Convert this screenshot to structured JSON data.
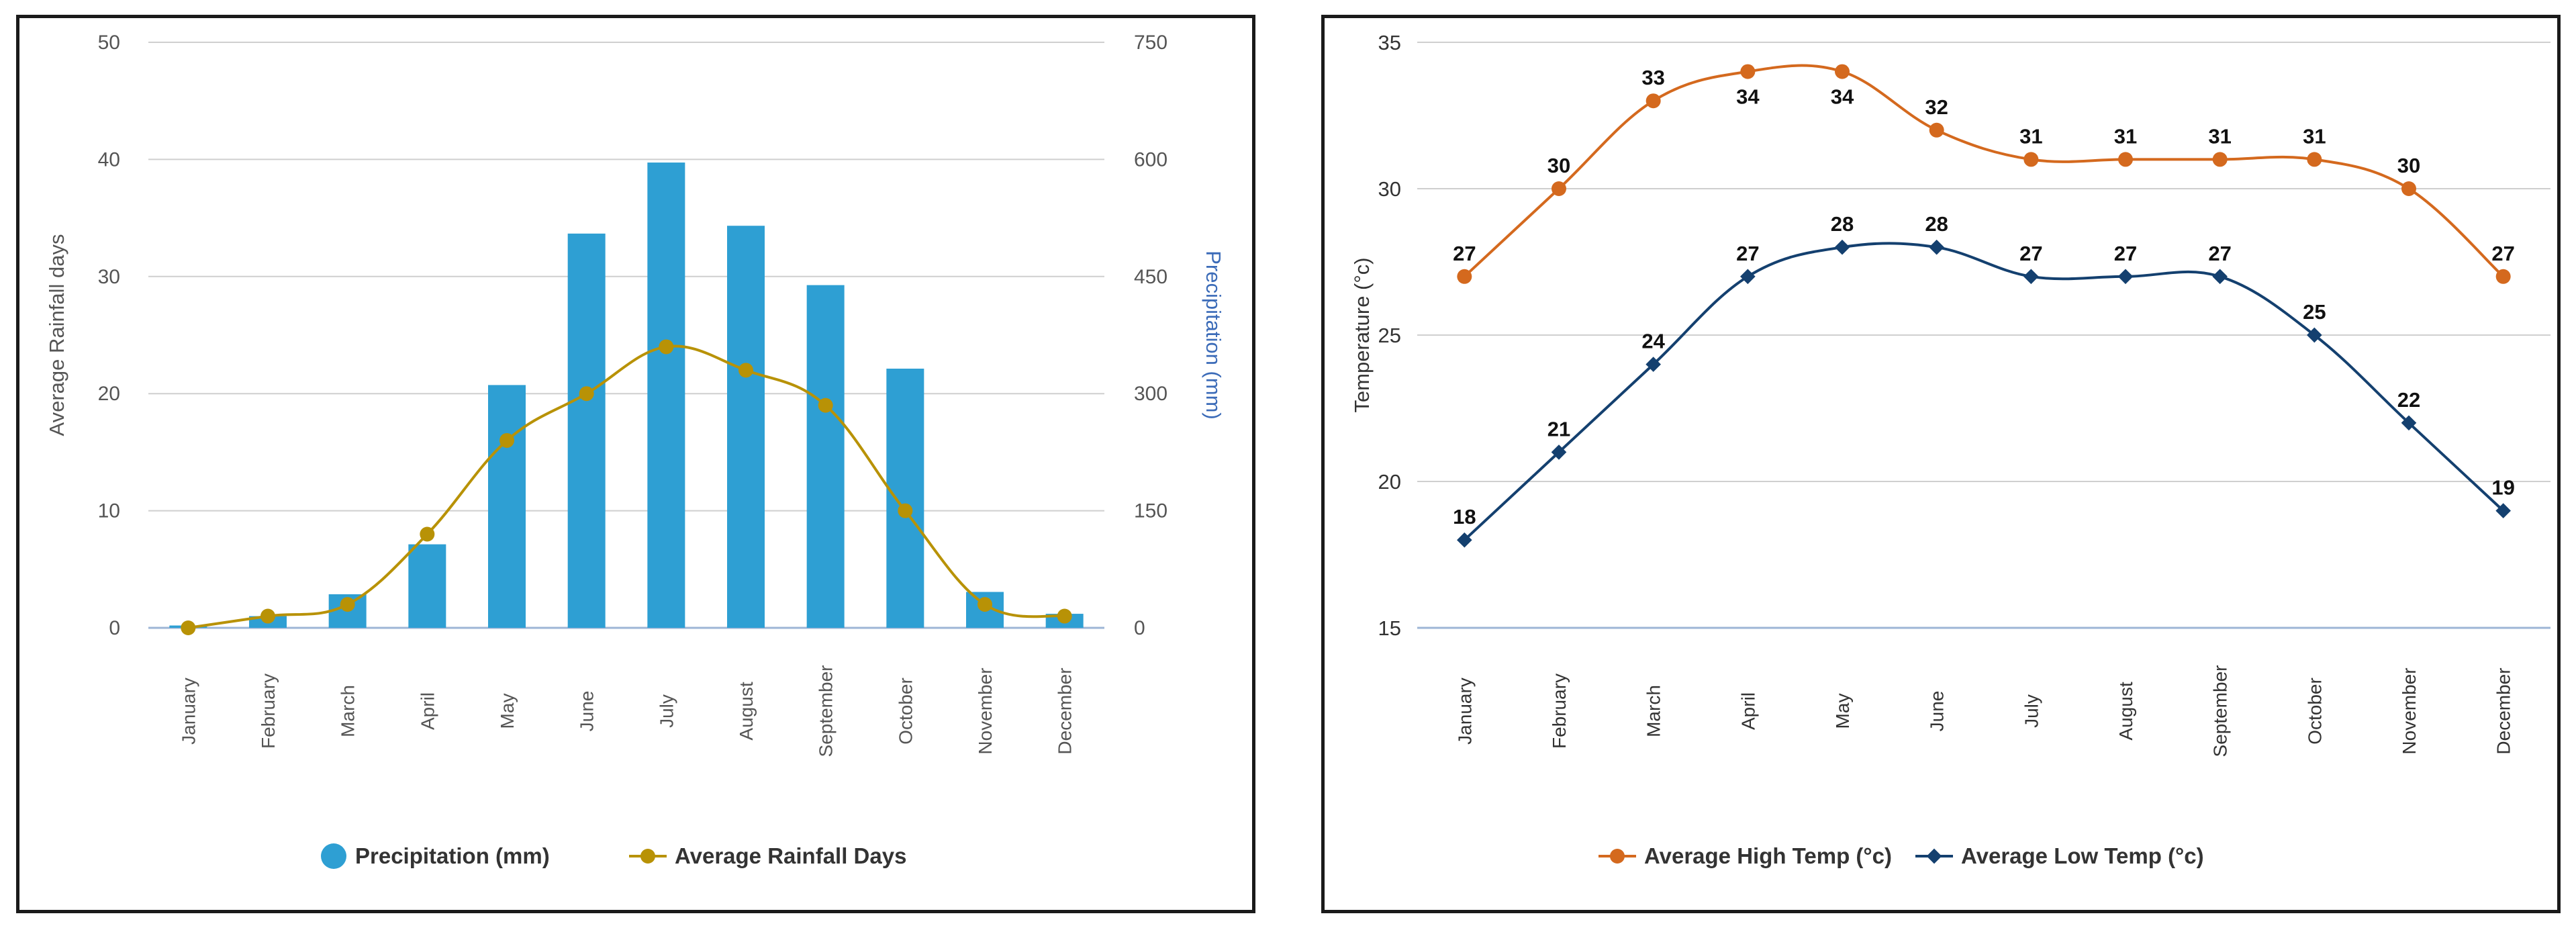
{
  "chart_data": [
    {
      "type": "bar",
      "categories": [
        "January",
        "February",
        "March",
        "April",
        "May",
        "June",
        "July",
        "August",
        "September",
        "October",
        "November",
        "December"
      ],
      "series": [
        {
          "name": "Precipitation (mm)",
          "type": "bar",
          "axis": "right",
          "color": "#2e9fd3",
          "values": [
            3,
            15,
            43,
            107,
            311,
            505,
            596,
            515,
            439,
            332,
            46,
            18
          ]
        },
        {
          "name": "Average Rainfall Days",
          "type": "line",
          "axis": "left",
          "color": "#b89206",
          "values": [
            0,
            1,
            2,
            8,
            16,
            20,
            24,
            22,
            19,
            10,
            2,
            1
          ]
        }
      ],
      "left_axis": {
        "label": "Average Rainfall days",
        "min": 0,
        "max": 50,
        "ticks": [
          0,
          10,
          20,
          30,
          40,
          50
        ]
      },
      "right_axis": {
        "label": "Precipitation (mm)",
        "min": 0,
        "max": 750,
        "ticks": [
          0,
          150,
          300,
          450,
          600,
          750
        ],
        "label_color": "#3b6bb8"
      },
      "legend": {
        "placement": "bottom-center"
      },
      "grid": true
    },
    {
      "type": "line",
      "categories": [
        "January",
        "February",
        "March",
        "April",
        "May",
        "June",
        "July",
        "August",
        "September",
        "October",
        "November",
        "December"
      ],
      "series": [
        {
          "name": "Average High Temp (°c)",
          "color": "#d4691e",
          "marker": "circle",
          "values": [
            27,
            30,
            33,
            34,
            34,
            32,
            31,
            31,
            31,
            31,
            30,
            27
          ]
        },
        {
          "name": "Average Low Temp (°c)",
          "color": "#14406f",
          "marker": "diamond",
          "values": [
            18,
            21,
            24,
            27,
            28,
            28,
            27,
            27,
            27,
            25,
            22,
            19
          ]
        }
      ],
      "y_axis": {
        "label": "Temperature (°c)",
        "min": 15,
        "max": 35,
        "ticks": [
          15,
          20,
          25,
          30,
          35
        ]
      },
      "data_labels": true,
      "legend": {
        "placement": "bottom-center"
      },
      "grid": true
    }
  ]
}
